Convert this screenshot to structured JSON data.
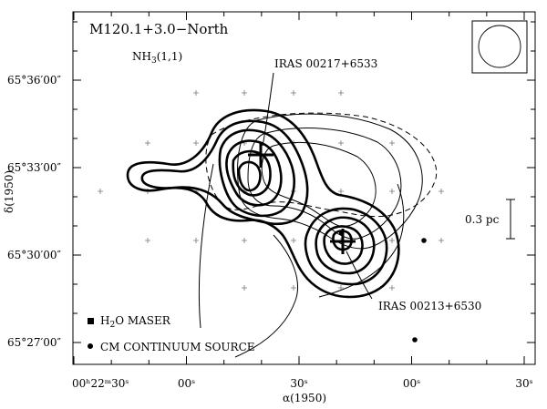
{
  "chart_data": {
    "type": "contour",
    "title": "M120.1+3.0−North",
    "line_label": "NH₃(1,1)",
    "xlabel": "α(1950)",
    "ylabel": "δ(1950)",
    "x_ticks": [
      {
        "text": "00ʰ22ᵐ30ˢ",
        "sec": 0
      },
      {
        "text": "00ˢ",
        "sec": 30
      },
      {
        "text": "30ˢ",
        "sec": 60
      },
      {
        "text": "00ˢ",
        "sec": 90
      },
      {
        "text": "30ˢ",
        "sec": 120
      }
    ],
    "y_ticks": [
      {
        "text": "65°36′00″",
        "arcmin": 36
      },
      {
        "text": "65°33′00″",
        "arcmin": 33
      },
      {
        "text": "65°30′00″",
        "arcmin": 30
      },
      {
        "text": "65°27′00″",
        "arcmin": 27
      }
    ],
    "sources": [
      {
        "name": "IRAS 00217+6533"
      },
      {
        "name": "IRAS 00213+6530"
      }
    ],
    "scale_bar": "0.3 pc",
    "legend": [
      {
        "symbol": "square",
        "text": "H₂O MASER"
      },
      {
        "symbol": "dot",
        "text": "CM CONTINUUM SOURCE"
      }
    ],
    "beam": "circle",
    "grid": false
  }
}
